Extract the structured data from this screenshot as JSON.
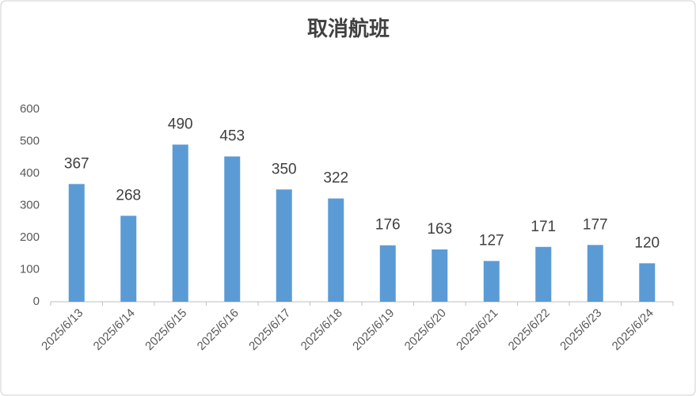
{
  "chart_data": {
    "type": "bar",
    "title": "取消航班",
    "categories": [
      "2025/6/13",
      "2025/6/14",
      "2025/6/15",
      "2025/6/16",
      "2025/6/17",
      "2025/6/18",
      "2025/6/19",
      "2025/6/20",
      "2025/6/21",
      "2025/6/22",
      "2025/6/23",
      "2025/6/24"
    ],
    "values": [
      367,
      268,
      490,
      453,
      350,
      322,
      176,
      163,
      127,
      171,
      177,
      120
    ],
    "color": "#5b9bd5",
    "ylim": [
      0,
      600
    ],
    "yticks": [
      0,
      100,
      200,
      300,
      400,
      500,
      600
    ],
    "grid": false
  }
}
